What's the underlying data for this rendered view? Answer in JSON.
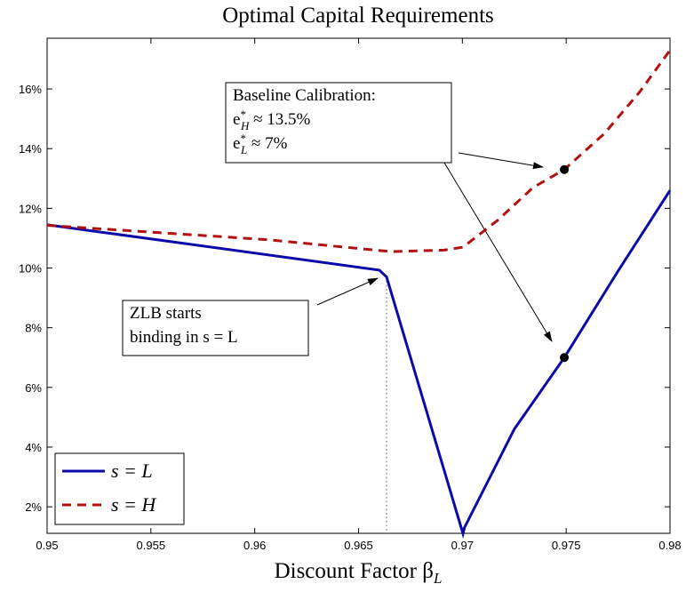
{
  "chart_data": {
    "type": "line",
    "title": "Optimal Capital Requirements",
    "xlabel": {
      "text": "Discount Factor β",
      "sub": "L"
    },
    "xlim": [
      0.95,
      0.98
    ],
    "xticks": [
      0.95,
      0.955,
      0.96,
      0.965,
      0.97,
      0.975,
      0.98
    ],
    "ylim": [
      1.11,
      17.7
    ],
    "yticks": [
      {
        "value": 2,
        "label": "2%"
      },
      {
        "value": 4,
        "label": "4%"
      },
      {
        "value": 6,
        "label": "6%"
      },
      {
        "value": 8,
        "label": "8%"
      },
      {
        "value": 10,
        "label": "10%"
      },
      {
        "value": 12,
        "label": "12%"
      },
      {
        "value": 14,
        "label": "14%"
      },
      {
        "value": 16,
        "label": "16%"
      }
    ],
    "legend_position": "lower left",
    "series": [
      {
        "name": {
          "text": "s = L"
        },
        "color": "#0a0aa8",
        "dash": false,
        "x": [
          0.95,
          0.966,
          0.96635,
          0.97003,
          0.9701,
          0.9725,
          0.97491,
          0.9775,
          0.98
        ],
        "values": [
          11.45,
          9.93,
          9.7,
          1.1,
          1.3,
          4.6,
          7.0,
          9.9,
          12.6
        ]
      },
      {
        "name": {
          "text": "s = H"
        },
        "color": "#b30f0f",
        "dash": true,
        "x": [
          0.95,
          0.9606,
          0.96656,
          0.96913,
          0.97003,
          0.9717,
          0.97341,
          0.97491,
          0.97683,
          0.97854,
          0.98
        ],
        "values": [
          11.43,
          10.95,
          10.55,
          10.6,
          10.7,
          11.6,
          12.7,
          13.3,
          14.5,
          15.9,
          17.3
        ]
      }
    ],
    "points": {
      "x": [
        0.97491,
        0.97491
      ],
      "values": [
        13.3,
        7.0
      ]
    },
    "vline": 0.96635,
    "annotations": [
      {
        "lines": [
          {
            "text": "Baseline Calibration:"
          },
          {
            "text": "e",
            "sup": "*",
            "sub": "H",
            "rest": " ≈ 13.5%"
          },
          {
            "text": "e",
            "sup": "*",
            "sub": "L",
            "rest": " ≈ 7%"
          }
        ]
      },
      {
        "lines": [
          {
            "text": "ZLB starts"
          },
          {
            "text": "binding in s = L"
          }
        ]
      }
    ]
  }
}
